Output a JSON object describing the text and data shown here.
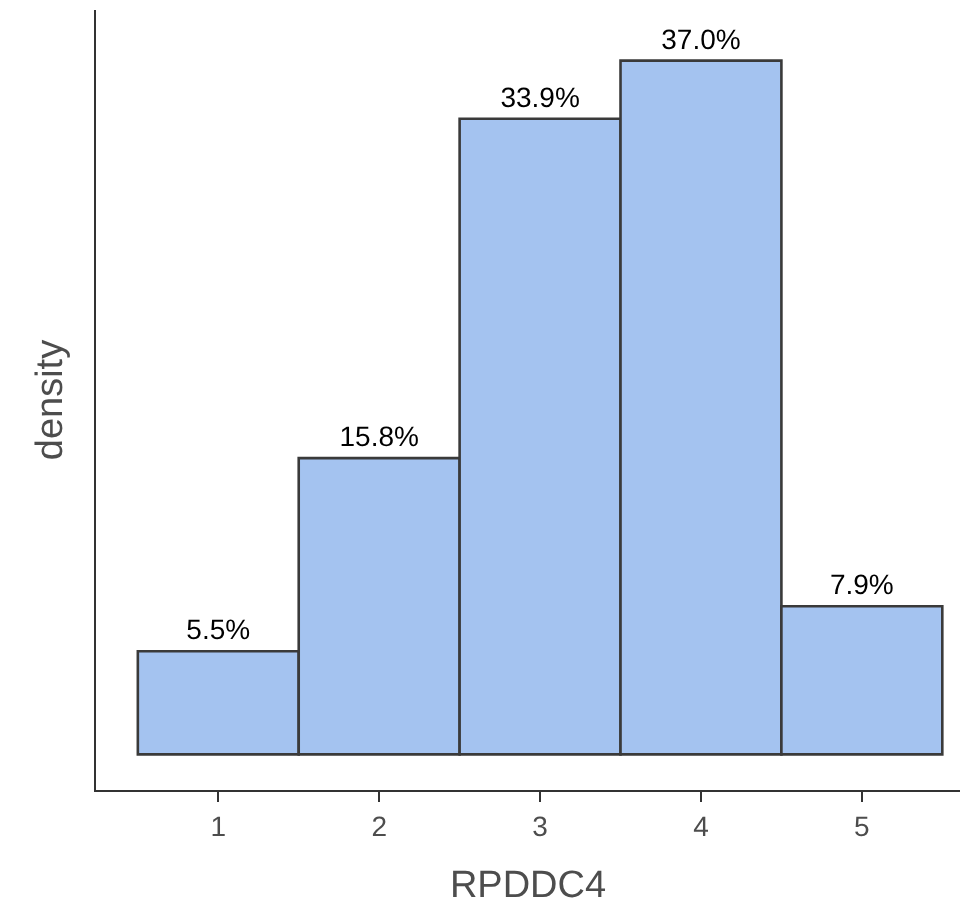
{
  "chart_data": {
    "type": "bar",
    "xlabel": "RPDDC4",
    "ylabel": "density",
    "categories": [
      "1",
      "2",
      "3",
      "4",
      "5"
    ],
    "values": [
      5.5,
      15.8,
      33.9,
      37.0,
      7.9
    ],
    "value_labels": [
      "5.5%",
      "15.8%",
      "33.9%",
      "37.0%",
      "7.9%"
    ],
    "color": "#a4c3f0",
    "ylim": [
      -1.9,
      39.7
    ],
    "tick_labels": "x"
  }
}
